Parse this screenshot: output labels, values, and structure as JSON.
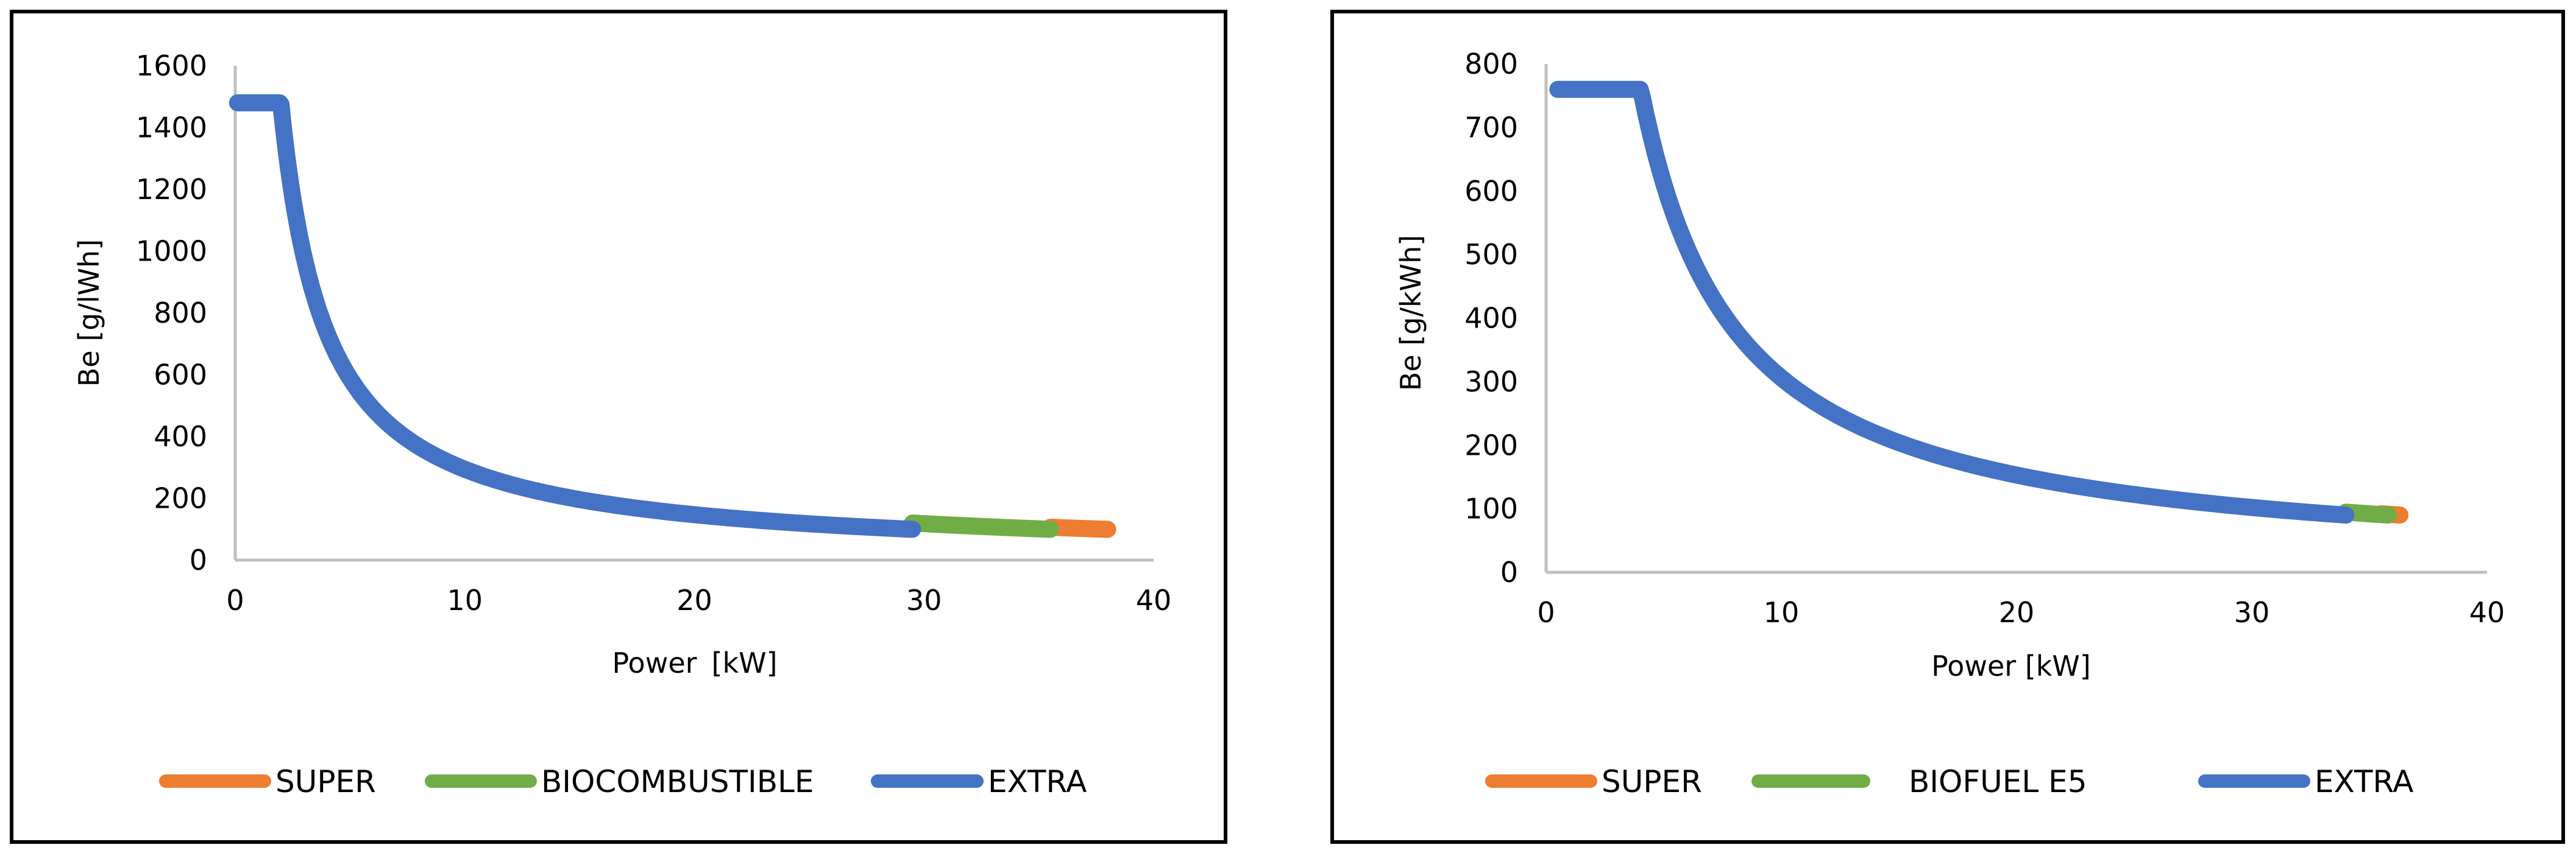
{
  "chart_data": [
    {
      "type": "line",
      "xlabel": "Power",
      "xlabel_unit": "[kW]",
      "ylabel": "Be [g/lWh]",
      "xlim": [
        0,
        40
      ],
      "ylim": [
        0,
        1600
      ],
      "xticks": [
        "0",
        "10",
        "20",
        "30",
        "40"
      ],
      "yticks": [
        "0",
        "200",
        "400",
        "600",
        "800",
        "1000",
        "1200",
        "1400",
        "1600"
      ],
      "grid": false,
      "legend_position": "bottom",
      "series": [
        {
          "name": "SUPER",
          "color": "#ED7D31",
          "x_start": 0.1,
          "x_end": 38.0,
          "k": 37.8,
          "draw_from_x": 35.5
        },
        {
          "name": "BIOCOMBUSTIBLE",
          "color": "#70AD47",
          "x_start": 0.1,
          "x_end": 35.5,
          "k": 35.4,
          "draw_from_x": 29.5
        },
        {
          "name": "EXTRA",
          "color": "#4472C4",
          "x_start": 0.1,
          "x_end": 29.5,
          "k": 29.4,
          "draw_from_x": 0.1,
          "y_at_x_start": 1480
        }
      ]
    },
    {
      "type": "line",
      "xlabel": "Power [kW]",
      "xlabel_unit": "",
      "ylabel": "Be [g/kWh]",
      "xlim": [
        0,
        40
      ],
      "ylim": [
        0,
        800
      ],
      "xticks": [
        "0",
        "10",
        "20",
        "30",
        "40"
      ],
      "yticks": [
        "0",
        "100",
        "200",
        "300",
        "400",
        "500",
        "600",
        "700",
        "800"
      ],
      "grid": false,
      "legend_position": "bottom",
      "series": [
        {
          "name": "SUPER",
          "color": "#ED7D31",
          "x_start": 0.5,
          "x_end": 36.3,
          "k": 32.7,
          "draw_from_x": 35.5
        },
        {
          "name": "BIOFUEL E5",
          "color": "#70AD47",
          "x_start": 0.5,
          "x_end": 35.8,
          "k": 32.2,
          "draw_from_x": 34.0
        },
        {
          "name": "EXTRA",
          "color": "#4472C4",
          "x_start": 0.5,
          "x_end": 34.0,
          "k": 30.6,
          "draw_from_x": 0.5,
          "y_at_x_start": 760
        }
      ]
    }
  ]
}
